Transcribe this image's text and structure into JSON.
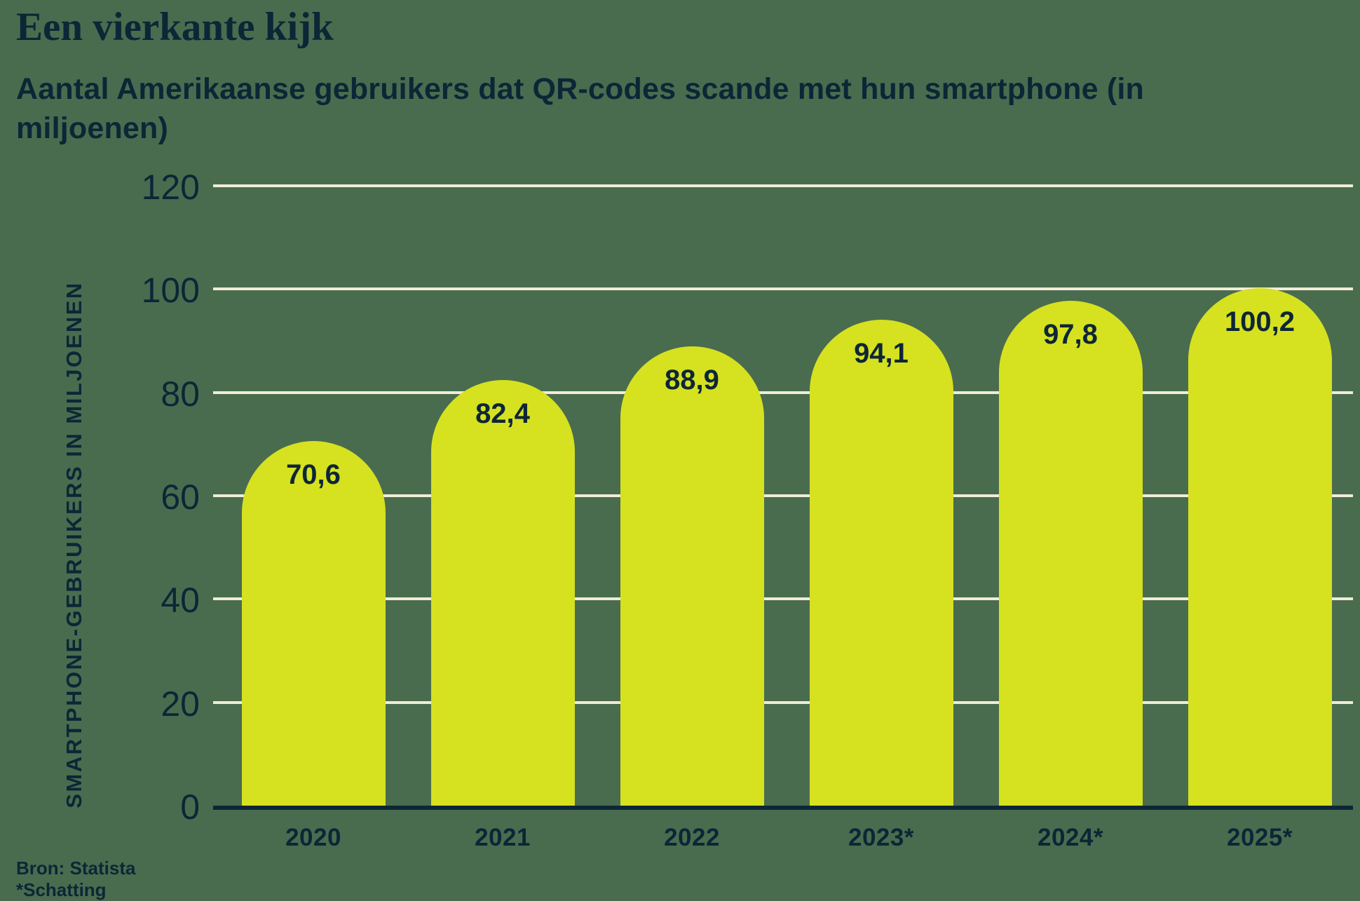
{
  "title": "Een vierkante kijk",
  "subtitle_lines": {
    "line1": "Aantal Amerikaanse gebruikers dat QR-codes scande met hun smartphone (in",
    "line2": "miljoenen)"
  },
  "source": {
    "line1": "Bron: Statista",
    "line2": "*Schatting"
  },
  "chart_data": {
    "type": "bar",
    "title": "Een vierkante kijk",
    "subtitle": "Aantal Amerikaanse gebruikers dat QR-codes scande met hun smartphone (in miljoenen)",
    "categories": [
      "2020",
      "2021",
      "2022",
      "2023*",
      "2024*",
      "2025*"
    ],
    "values": [
      70.6,
      82.4,
      88.9,
      94.1,
      97.8,
      100.2
    ],
    "value_labels": [
      "70,6",
      "82,4",
      "88,9",
      "94,1",
      "97,8",
      "100,2"
    ],
    "xlabel": "",
    "ylabel": "SMARTPHONE-GEBRUIKERS IN MILJOENEN",
    "yticks": [
      0,
      20,
      40,
      60,
      80,
      100,
      120
    ],
    "ylim": [
      0,
      120
    ],
    "grid": true,
    "legend_position": "none",
    "source": "Bron: Statista",
    "footnote": "*Schatting",
    "colors": {
      "background": "#496c4f",
      "bar": "#d6e120",
      "text": "#0d2636",
      "gridline": "#f0ecd6",
      "axis": "#0d2636"
    }
  }
}
